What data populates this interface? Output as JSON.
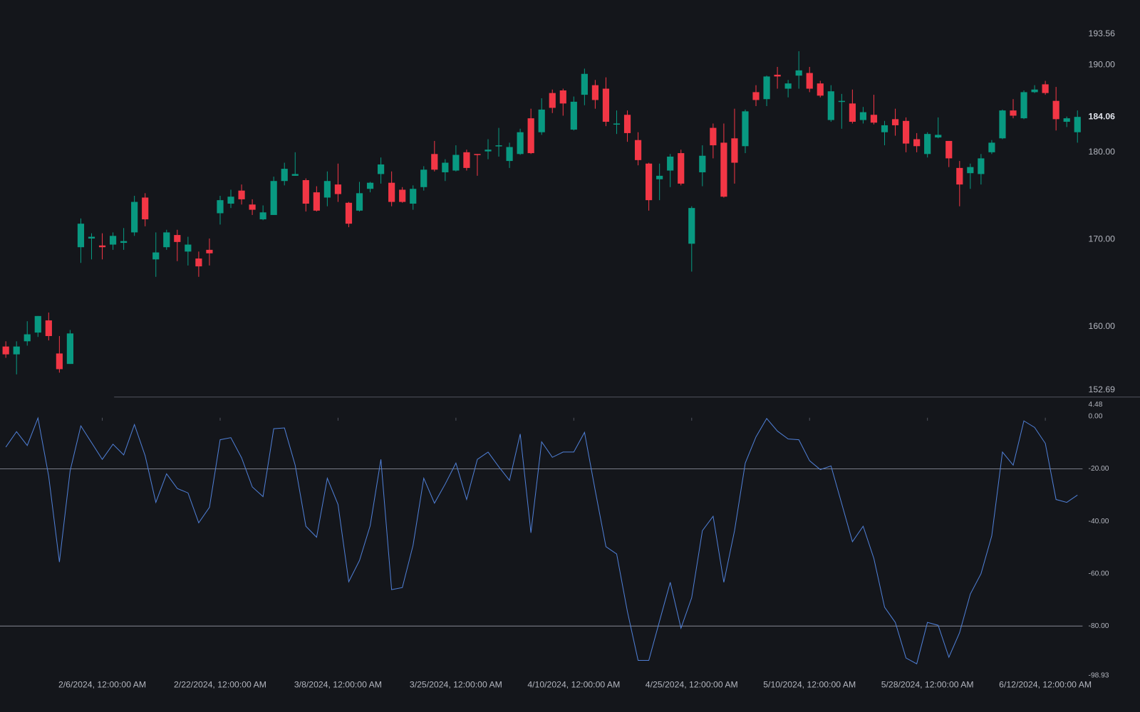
{
  "chart_data": [
    {
      "type": "candlestick",
      "categories": [
        null,
        null,
        null,
        null,
        null,
        null,
        null,
        null,
        null,
        "2/6/2024, 12:00:00 AM",
        null,
        null,
        null,
        null,
        null,
        null,
        null,
        null,
        null,
        null,
        "2/22/2024, 12:00:00 AM",
        null,
        null,
        null,
        null,
        null,
        null,
        null,
        null,
        null,
        null,
        "3/8/2024, 12:00:00 AM",
        null,
        null,
        null,
        null,
        null,
        null,
        null,
        null,
        null,
        null,
        "3/25/2024, 12:00:00 AM",
        null,
        null,
        null,
        null,
        null,
        null,
        null,
        null,
        null,
        null,
        "4/10/2024, 12:00:00 AM",
        null,
        null,
        null,
        null,
        null,
        null,
        null,
        null,
        null,
        null,
        "4/25/2024, 12:00:00 AM",
        null,
        null,
        null,
        null,
        null,
        null,
        null,
        null,
        null,
        null,
        "5/10/2024, 12:00:00 AM",
        null,
        null,
        null,
        null,
        null,
        null,
        null,
        null,
        null,
        null,
        "5/28/2024, 12:00:00 AM",
        null,
        null,
        null,
        null,
        null,
        null,
        null,
        null,
        null,
        null,
        "6/12/2024, 12:00:00 AM",
        null,
        null,
        null
      ],
      "open": [
        157.7,
        156.8,
        158.3,
        159.3,
        160.7,
        156.9,
        155.7,
        169.1,
        170.1,
        169.3,
        169.4,
        169.6,
        170.8,
        174.8,
        167.7,
        169.1,
        170.5,
        168.6,
        167.8,
        168.8,
        173.0,
        174.1,
        175.6,
        174.0,
        172.3,
        172.8,
        176.7,
        177.3,
        176.8,
        175.4,
        174.8,
        176.3,
        174.2,
        173.3,
        175.8,
        177.5,
        176.5,
        175.7,
        174.1,
        176.0,
        179.8,
        177.7,
        177.9,
        180.0,
        179.8,
        180.1,
        180.7,
        179.0,
        179.8,
        183.9,
        182.3,
        186.8,
        187.1,
        182.6,
        186.6,
        187.7,
        187.3,
        183.2,
        184.3,
        181.4,
        178.7,
        176.9,
        177.9,
        179.9,
        169.5,
        177.7,
        182.8,
        181.1,
        181.6,
        180.7,
        186.9,
        186.1,
        188.9,
        187.3,
        188.8,
        189.1,
        187.9,
        183.7,
        185.8,
        185.6,
        183.7,
        184.3,
        182.3,
        183.8,
        183.6,
        181.5,
        179.8,
        181.7,
        181.3,
        178.2,
        177.6,
        177.5,
        180.0,
        181.6,
        184.8,
        183.9,
        186.9,
        187.8,
        185.9,
        183.5,
        182.3
      ],
      "high": [
        158.3,
        158.3,
        160.6,
        161.2,
        161.6,
        158.9,
        159.6,
        172.4,
        170.7,
        170.7,
        170.8,
        171.3,
        175.0,
        175.3,
        170.8,
        171.1,
        171.1,
        170.3,
        168.6,
        170.1,
        175.0,
        175.7,
        176.3,
        174.6,
        173.9,
        177.2,
        178.8,
        180.0,
        177.0,
        176.1,
        177.8,
        178.7,
        174.3,
        176.6,
        176.6,
        179.4,
        177.8,
        176.0,
        176.2,
        178.4,
        181.3,
        179.2,
        180.8,
        180.3,
        179.8,
        181.5,
        182.8,
        181.1,
        182.7,
        185.0,
        186.2,
        187.2,
        187.3,
        186.4,
        189.6,
        188.3,
        188.6,
        184.8,
        184.8,
        182.3,
        178.8,
        178.7,
        179.8,
        180.3,
        173.8,
        180.8,
        183.3,
        183.3,
        185.0,
        184.9,
        187.7,
        188.8,
        189.8,
        188.3,
        191.6,
        189.8,
        188.2,
        187.7,
        186.7,
        187.2,
        185.2,
        186.6,
        183.6,
        185.0,
        184.0,
        182.2,
        182.3,
        184.0,
        181.3,
        179.0,
        178.7,
        179.8,
        181.4,
        184.9,
        186.1,
        187.1,
        187.7,
        188.2,
        187.5,
        184.1,
        184.8
      ],
      "low": [
        156.4,
        154.5,
        157.8,
        158.8,
        158.4,
        154.7,
        155.7,
        167.3,
        167.7,
        167.7,
        168.8,
        168.8,
        170.4,
        171.5,
        165.7,
        168.8,
        167.5,
        167.0,
        165.7,
        167.0,
        171.7,
        173.6,
        174.0,
        172.8,
        172.2,
        172.8,
        176.2,
        177.3,
        173.2,
        173.2,
        173.8,
        174.3,
        171.4,
        173.2,
        175.4,
        176.4,
        173.8,
        174.2,
        173.4,
        175.6,
        177.8,
        176.7,
        177.8,
        177.9,
        177.3,
        179.2,
        179.5,
        178.2,
        179.7,
        179.8,
        182.0,
        184.5,
        184.2,
        182.5,
        185.4,
        185.0,
        183.0,
        182.1,
        181.2,
        178.5,
        173.3,
        174.5,
        176.0,
        176.2,
        166.3,
        176.1,
        179.3,
        174.8,
        176.4,
        179.9,
        185.3,
        185.3,
        187.3,
        186.3,
        187.3,
        186.9,
        186.3,
        183.5,
        182.7,
        183.3,
        183.3,
        183.2,
        180.8,
        181.9,
        180.0,
        180.0,
        179.4,
        181.6,
        178.3,
        173.8,
        175.8,
        176.3,
        179.8,
        181.5,
        183.9,
        183.8,
        186.8,
        186.6,
        182.5,
        182.9,
        181.1
      ],
      "close": [
        156.8,
        157.7,
        159.1,
        161.2,
        158.9,
        155.1,
        159.2,
        171.8,
        170.3,
        169.1,
        170.4,
        169.8,
        174.3,
        172.3,
        168.5,
        170.8,
        169.7,
        169.4,
        166.9,
        168.4,
        174.5,
        174.9,
        174.6,
        173.4,
        173.1,
        176.7,
        178.1,
        177.5,
        174.1,
        173.3,
        176.7,
        175.2,
        171.8,
        175.3,
        176.5,
        178.6,
        174.3,
        174.3,
        175.8,
        178.0,
        178.0,
        178.8,
        179.7,
        178.2,
        179.7,
        180.3,
        180.8,
        180.6,
        182.3,
        179.9,
        184.9,
        185.1,
        185.6,
        185.8,
        189.0,
        186.0,
        183.5,
        183.3,
        182.2,
        179.1,
        174.5,
        177.3,
        179.5,
        176.4,
        173.6,
        179.6,
        180.8,
        174.9,
        178.8,
        184.7,
        186.0,
        188.7,
        188.7,
        187.9,
        189.4,
        187.3,
        186.5,
        187.0,
        185.9,
        183.5,
        184.6,
        183.4,
        183.1,
        183.1,
        181.0,
        180.7,
        182.1,
        182.0,
        179.3,
        176.3,
        178.3,
        179.3,
        181.1,
        184.8,
        184.2,
        186.9,
        187.2,
        186.8,
        183.8,
        183.9,
        184.06
      ],
      "up_color": "#089981",
      "down_color": "#f23645",
      "ylim": [
        152.69,
        193.56
      ],
      "yticks": [
        152.69,
        {
          "value": 160,
          "label": "160.00"
        },
        {
          "value": 170,
          "label": "170.00"
        },
        {
          "value": 180,
          "label": "180.00"
        },
        {
          "value": 190,
          "label": "190.00"
        },
        193.56
      ]
    },
    {
      "type": "line",
      "values": [
        -11.7,
        -5.8,
        -11.1,
        -0.6,
        -22.8,
        -55.6,
        -20.8,
        -3.6,
        -10.0,
        -16.4,
        -10.6,
        -14.7,
        -3.1,
        -15.0,
        -32.8,
        -21.9,
        -27.5,
        -29.2,
        -40.6,
        -34.7,
        -8.9,
        -8.1,
        -15.8,
        -26.9,
        -30.6,
        -4.7,
        -4.4,
        -18.6,
        -41.9,
        -46.1,
        -23.6,
        -33.6,
        -63.1,
        -55.0,
        -41.7,
        -16.4,
        -66.1,
        -65.3,
        -49.2,
        -23.6,
        -33.1,
        -25.8,
        -17.8,
        -31.7,
        -16.4,
        -13.6,
        -19.2,
        -24.4,
        -6.7,
        -44.4,
        -9.7,
        -15.6,
        -13.6,
        -13.6,
        -6.1,
        -28.3,
        -49.7,
        -52.5,
        -74.4,
        -93.1,
        -93.1,
        -78.1,
        -63.3,
        -80.8,
        -69.2,
        -43.6,
        -38.1,
        -63.3,
        -43.6,
        -17.8,
        -7.8,
        -0.8,
        -5.6,
        -8.6,
        -8.9,
        -16.9,
        -20.3,
        -18.9,
        -33.3,
        -47.8,
        -41.9,
        -54.2,
        -72.8,
        -78.6,
        -92.2,
        -94.4,
        -78.6,
        -79.7,
        -91.9,
        -82.5,
        -67.8,
        -60.0,
        -45.6,
        -13.6,
        -18.6,
        -1.7,
        -4.2,
        -10.3,
        -31.7,
        -32.8,
        -30.0
      ],
      "color": "#4f7fd6",
      "ylim": [
        -98.93,
        4.48
      ],
      "yticks": [
        -98.93,
        {
          "value": -80,
          "label": "-80.00"
        },
        {
          "value": -60,
          "label": "-60.00"
        },
        {
          "value": -40,
          "label": "-40.00"
        },
        {
          "value": -20,
          "label": "-20.00"
        },
        {
          "value": 0,
          "label": "0.00"
        },
        4.48
      ],
      "levels": [
        -20,
        -80
      ],
      "level_color": "#787b86"
    }
  ]
}
